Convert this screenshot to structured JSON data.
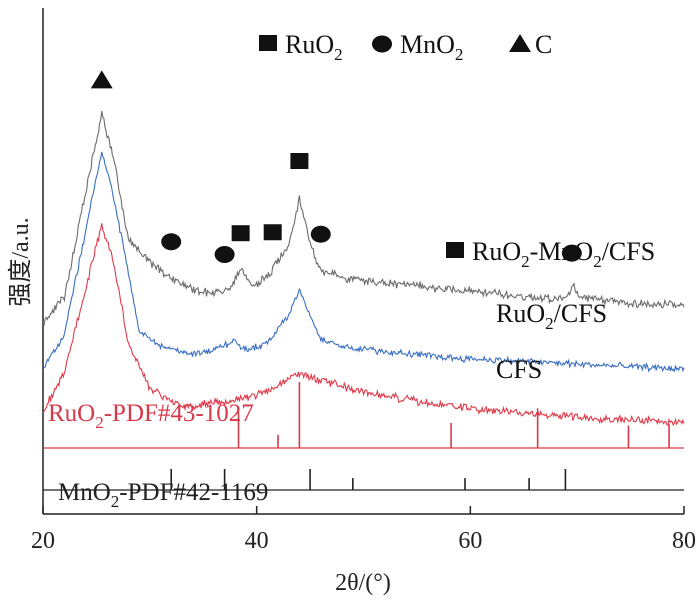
{
  "chart_data": {
    "type": "line",
    "xlabel": "2θ/(°)",
    "ylabel": "强度/a.u.",
    "xlim": [
      20,
      80
    ],
    "x_ticks": [
      "20",
      "40",
      "60",
      "80"
    ],
    "legend": [
      {
        "marker": "square",
        "text": "RuO",
        "sub": "2"
      },
      {
        "marker": "circle",
        "text": "MnO",
        "sub": "2"
      },
      {
        "marker": "triangle",
        "text": "C",
        "sub": ""
      }
    ],
    "series": [
      {
        "name": "RuO2-MnO2/CFS",
        "label_parts": [
          "RuO",
          "2",
          "-MnO",
          "2",
          "/CFS"
        ],
        "color": "#6b6b6b",
        "baseline": 0.0,
        "noise": 0.045,
        "background": [
          [
            20,
            0.85
          ],
          [
            22,
            1.2
          ],
          [
            25.5,
            3.6
          ],
          [
            26.5,
            3.1
          ],
          [
            28,
            1.95
          ],
          [
            30,
            1.65
          ],
          [
            32,
            1.45
          ],
          [
            34,
            1.3
          ],
          [
            36,
            1.25
          ],
          [
            37.5,
            1.3
          ],
          [
            38.5,
            1.55
          ],
          [
            39.5,
            1.35
          ],
          [
            41,
            1.45
          ],
          [
            43,
            1.9
          ],
          [
            44,
            2.5
          ],
          [
            45,
            1.9
          ],
          [
            46,
            1.55
          ],
          [
            48,
            1.45
          ],
          [
            52,
            1.38
          ],
          [
            56,
            1.33
          ],
          [
            60,
            1.28
          ],
          [
            65,
            1.2
          ],
          [
            69,
            1.18
          ],
          [
            69.7,
            1.35
          ],
          [
            70.3,
            1.18
          ],
          [
            75,
            1.12
          ],
          [
            80,
            1.08
          ]
        ]
      },
      {
        "name": "RuO2/CFS",
        "label_parts": [
          "RuO",
          "2",
          "/CFS"
        ],
        "color": "#3a6fc4",
        "baseline": 0.0,
        "noise": 0.035,
        "background": [
          [
            20,
            0.25
          ],
          [
            22,
            0.7
          ],
          [
            25.5,
            3.1
          ],
          [
            26.5,
            2.6
          ],
          [
            28,
            1.5
          ],
          [
            29,
            0.75
          ],
          [
            31,
            0.55
          ],
          [
            34,
            0.45
          ],
          [
            36,
            0.5
          ],
          [
            38,
            0.62
          ],
          [
            39,
            0.5
          ],
          [
            41,
            0.6
          ],
          [
            43,
            0.95
          ],
          [
            44,
            1.3
          ],
          [
            45,
            0.95
          ],
          [
            46,
            0.65
          ],
          [
            48,
            0.55
          ],
          [
            52,
            0.48
          ],
          [
            58,
            0.4
          ],
          [
            65,
            0.35
          ],
          [
            72,
            0.3
          ],
          [
            80,
            0.25
          ]
        ]
      },
      {
        "name": "CFS",
        "label_parts": [
          "CFS"
        ],
        "color": "#e03a4a",
        "baseline": 0.0,
        "noise": 0.04,
        "background": [
          [
            20,
            -0.3
          ],
          [
            22,
            0.2
          ],
          [
            25.5,
            2.15
          ],
          [
            26.5,
            1.7
          ],
          [
            28,
            0.6
          ],
          [
            30,
            0.0
          ],
          [
            33,
            -0.25
          ],
          [
            36,
            -0.2
          ],
          [
            38,
            -0.15
          ],
          [
            41,
            -0.05
          ],
          [
            44,
            0.2
          ],
          [
            46,
            0.1
          ],
          [
            50,
            -0.05
          ],
          [
            56,
            -0.2
          ],
          [
            62,
            -0.3
          ],
          [
            70,
            -0.38
          ],
          [
            80,
            -0.45
          ]
        ]
      }
    ],
    "peak_markers": [
      {
        "marker": "triangle",
        "x": 25.5
      },
      {
        "marker": "circle",
        "x": 32
      },
      {
        "marker": "circle",
        "x": 37
      },
      {
        "marker": "square",
        "x": 38.5
      },
      {
        "marker": "square",
        "x": 41.5
      },
      {
        "marker": "square",
        "x": 44
      },
      {
        "marker": "circle",
        "x": 46
      },
      {
        "marker": "circle",
        "x": 69.5
      }
    ],
    "reference_patterns": [
      {
        "name": "RuO2-PDF#43-1027",
        "label_parts": [
          "RuO",
          "2",
          "-PDF#43-1027"
        ],
        "color": "#d63a48",
        "peaks": [
          {
            "x": 38.3,
            "h": 0.55
          },
          {
            "x": 42.0,
            "h": 0.2
          },
          {
            "x": 44.0,
            "h": 1.0
          },
          {
            "x": 58.2,
            "h": 0.38
          },
          {
            "x": 66.3,
            "h": 0.6
          },
          {
            "x": 74.8,
            "h": 0.34
          },
          {
            "x": 78.6,
            "h": 0.36
          }
        ]
      },
      {
        "name": "MnO2-PDF#42-1169",
        "label_parts": [
          "MnO",
          "2",
          "-PDF#42-1169"
        ],
        "color": "#222222",
        "peaks": [
          {
            "x": 32.0,
            "h": 0.6
          },
          {
            "x": 37.0,
            "h": 0.6
          },
          {
            "x": 45.0,
            "h": 0.6
          },
          {
            "x": 49.0,
            "h": 0.34
          },
          {
            "x": 59.5,
            "h": 0.34
          },
          {
            "x": 65.5,
            "h": 0.34
          },
          {
            "x": 68.9,
            "h": 0.6
          }
        ]
      }
    ]
  }
}
